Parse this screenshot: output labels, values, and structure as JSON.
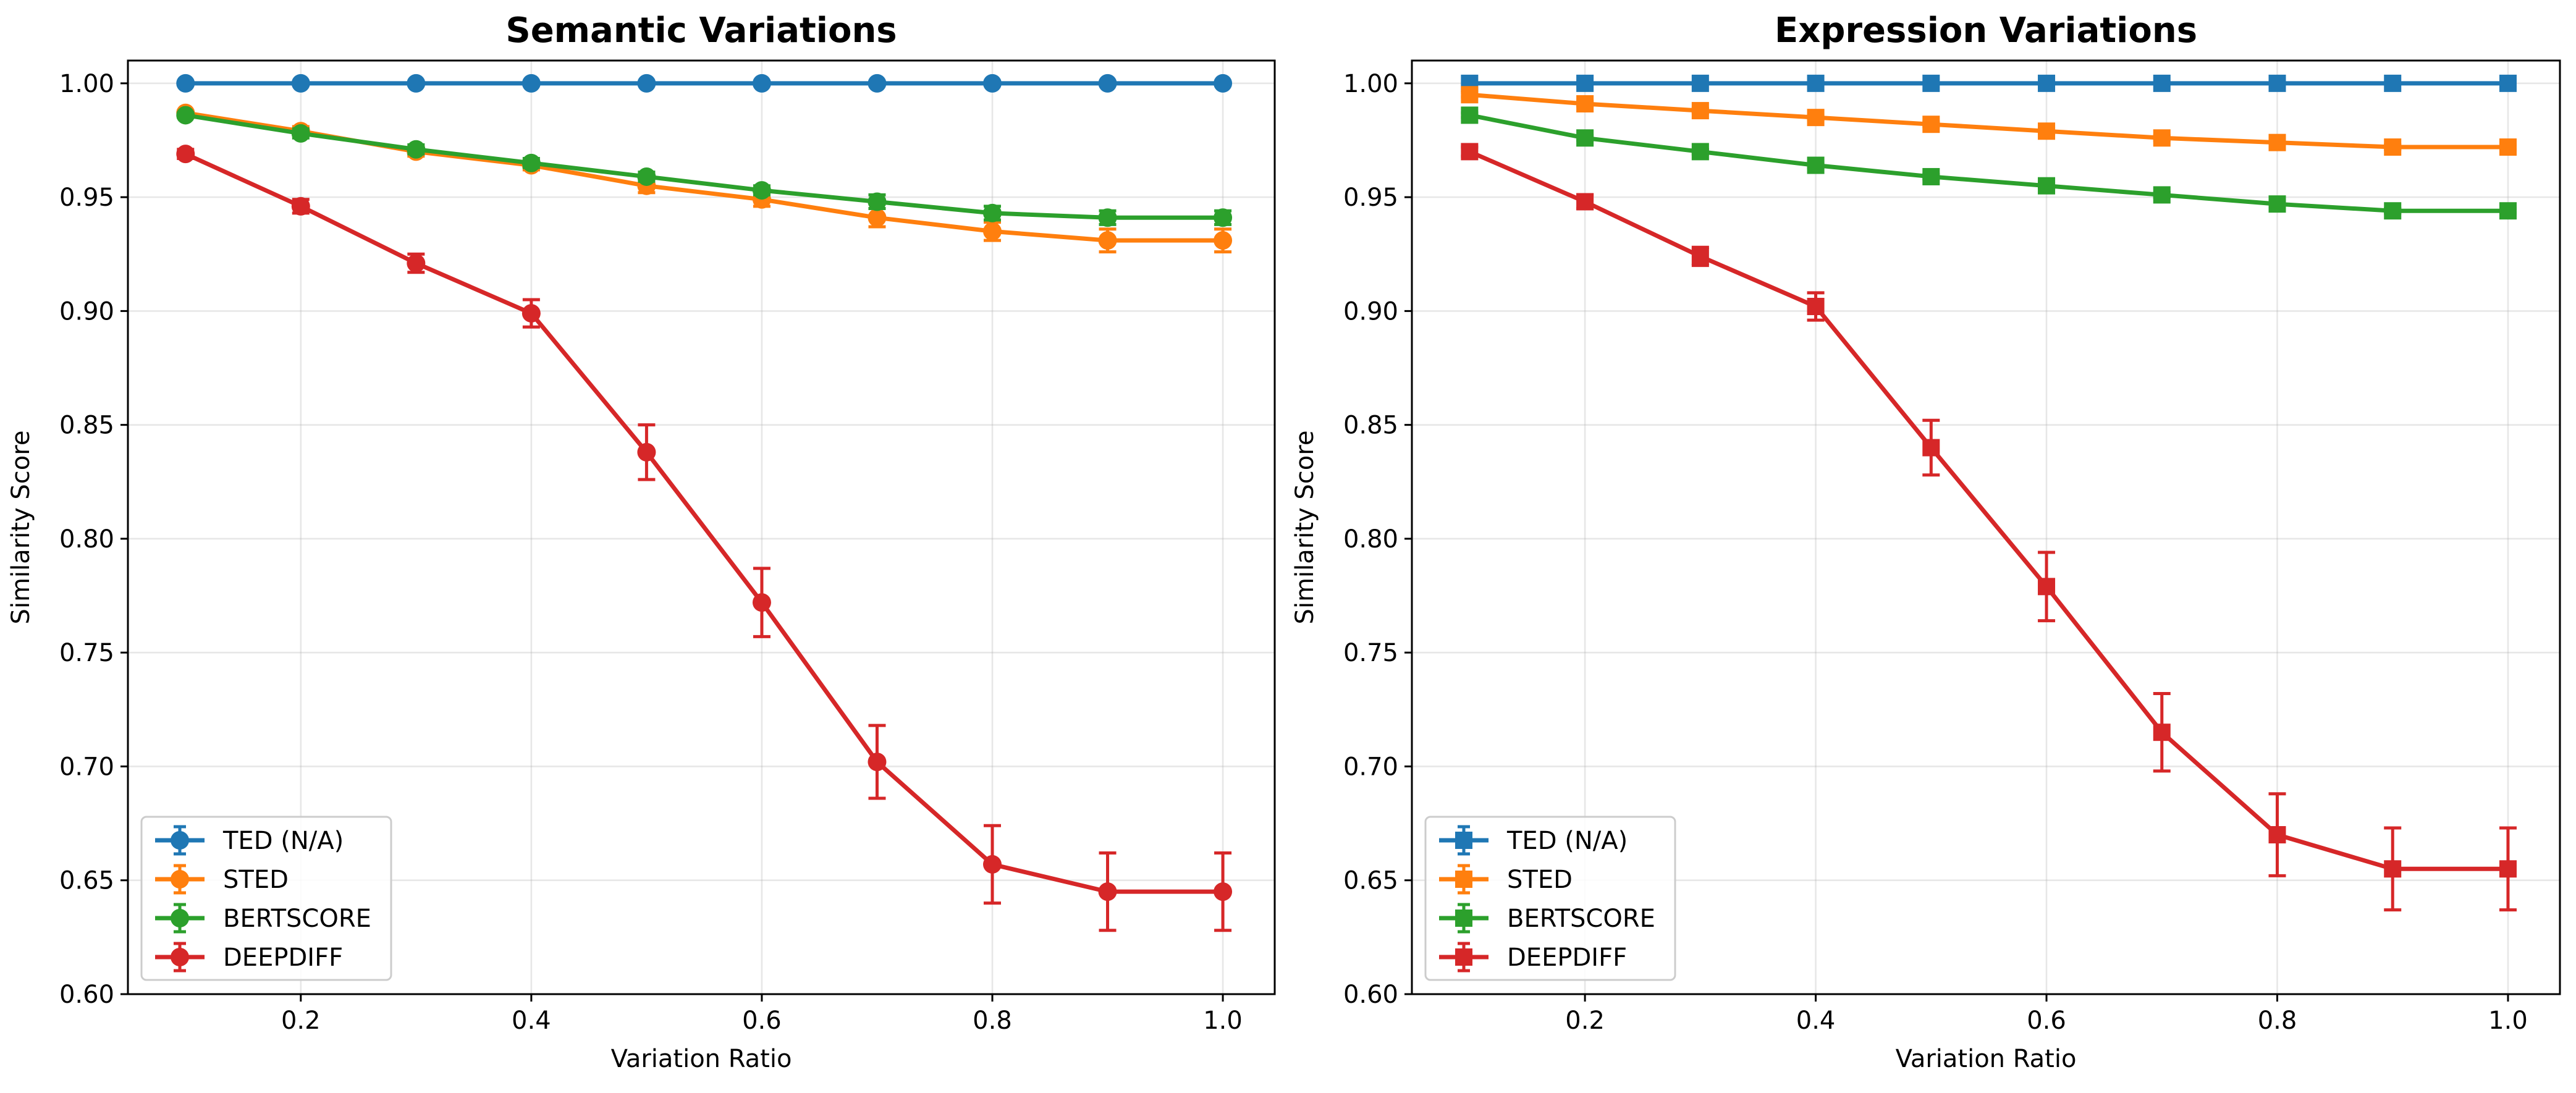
{
  "chart_data": [
    {
      "type": "line",
      "title": "Semantic Variations",
      "xlabel": "Variation Ratio",
      "ylabel": "Similarity Score",
      "xlim": [
        0.05,
        1.045
      ],
      "ylim": [
        0.6,
        1.01
      ],
      "marker": "circle",
      "grid": true,
      "legend_position": "lower-left",
      "x": [
        0.1,
        0.2,
        0.3,
        0.4,
        0.5,
        0.6,
        0.7,
        0.8,
        0.9,
        1.0
      ],
      "xticks": [
        0.2,
        0.4,
        0.6,
        0.8,
        1.0
      ],
      "xtick_labels": [
        "0.2",
        "0.4",
        "0.6",
        "0.8",
        "1.0"
      ],
      "yticks": [
        0.6,
        0.65,
        0.7,
        0.75,
        0.8,
        0.85,
        0.9,
        0.95,
        1.0
      ],
      "ytick_labels": [
        "0.60",
        "0.65",
        "0.70",
        "0.75",
        "0.80",
        "0.85",
        "0.90",
        "0.95",
        "1.00"
      ],
      "series": [
        {
          "name": "TED (N/A)",
          "color": "#1f77b4",
          "values": [
            1.0,
            1.0,
            1.0,
            1.0,
            1.0,
            1.0,
            1.0,
            1.0,
            1.0,
            1.0
          ],
          "errors": [
            0,
            0,
            0,
            0,
            0,
            0,
            0,
            0,
            0,
            0
          ]
        },
        {
          "name": "STED",
          "color": "#ff7f0e",
          "values": [
            0.987,
            0.979,
            0.97,
            0.964,
            0.955,
            0.949,
            0.941,
            0.935,
            0.931,
            0.931
          ],
          "errors": [
            0.001,
            0.002,
            0.002,
            0.002,
            0.003,
            0.003,
            0.004,
            0.004,
            0.005,
            0.005
          ]
        },
        {
          "name": "BERTSCORE",
          "color": "#2ca02c",
          "values": [
            0.986,
            0.978,
            0.971,
            0.965,
            0.959,
            0.953,
            0.948,
            0.943,
            0.941,
            0.941
          ],
          "errors": [
            0.001,
            0.002,
            0.002,
            0.002,
            0.002,
            0.002,
            0.003,
            0.003,
            0.003,
            0.003
          ]
        },
        {
          "name": "DEEPDIFF",
          "color": "#d62728",
          "values": [
            0.969,
            0.946,
            0.921,
            0.899,
            0.838,
            0.772,
            0.702,
            0.657,
            0.645,
            0.645
          ],
          "errors": [
            0.002,
            0.003,
            0.004,
            0.006,
            0.012,
            0.015,
            0.016,
            0.017,
            0.017,
            0.017
          ]
        }
      ],
      "legend": [
        "TED (N/A)",
        "STED",
        "BERTSCORE",
        "DEEPDIFF"
      ]
    },
    {
      "type": "line",
      "title": "Expression Variations",
      "xlabel": "Variation Ratio",
      "ylabel": "Similarity Score",
      "xlim": [
        0.05,
        1.045
      ],
      "ylim": [
        0.6,
        1.01
      ],
      "marker": "square",
      "grid": true,
      "legend_position": "lower-left",
      "x": [
        0.1,
        0.2,
        0.3,
        0.4,
        0.5,
        0.6,
        0.7,
        0.8,
        0.9,
        1.0
      ],
      "xticks": [
        0.2,
        0.4,
        0.6,
        0.8,
        1.0
      ],
      "xtick_labels": [
        "0.2",
        "0.4",
        "0.6",
        "0.8",
        "1.0"
      ],
      "yticks": [
        0.6,
        0.65,
        0.7,
        0.75,
        0.8,
        0.85,
        0.9,
        0.95,
        1.0
      ],
      "ytick_labels": [
        "0.60",
        "0.65",
        "0.70",
        "0.75",
        "0.80",
        "0.85",
        "0.90",
        "0.95",
        "1.00"
      ],
      "series": [
        {
          "name": "TED (N/A)",
          "color": "#1f77b4",
          "values": [
            1.0,
            1.0,
            1.0,
            1.0,
            1.0,
            1.0,
            1.0,
            1.0,
            1.0,
            1.0
          ],
          "errors": [
            0,
            0,
            0,
            0,
            0,
            0,
            0,
            0,
            0,
            0
          ]
        },
        {
          "name": "STED",
          "color": "#ff7f0e",
          "values": [
            0.995,
            0.991,
            0.988,
            0.985,
            0.982,
            0.979,
            0.976,
            0.974,
            0.972,
            0.972
          ],
          "errors": [
            0.001,
            0.001,
            0.001,
            0.001,
            0.001,
            0.001,
            0.001,
            0.001,
            0.001,
            0.001
          ]
        },
        {
          "name": "BERTSCORE",
          "color": "#2ca02c",
          "values": [
            0.986,
            0.976,
            0.97,
            0.964,
            0.959,
            0.955,
            0.951,
            0.947,
            0.944,
            0.944
          ],
          "errors": [
            0.001,
            0.001,
            0.001,
            0.001,
            0.001,
            0.001,
            0.001,
            0.001,
            0.001,
            0.001
          ]
        },
        {
          "name": "DEEPDIFF",
          "color": "#d62728",
          "values": [
            0.97,
            0.948,
            0.924,
            0.902,
            0.84,
            0.779,
            0.715,
            0.67,
            0.655,
            0.655
          ],
          "errors": [
            0.002,
            0.003,
            0.004,
            0.006,
            0.012,
            0.015,
            0.017,
            0.018,
            0.018,
            0.018
          ]
        }
      ],
      "legend": [
        "TED (N/A)",
        "STED",
        "BERTSCORE",
        "DEEPDIFF"
      ]
    }
  ]
}
